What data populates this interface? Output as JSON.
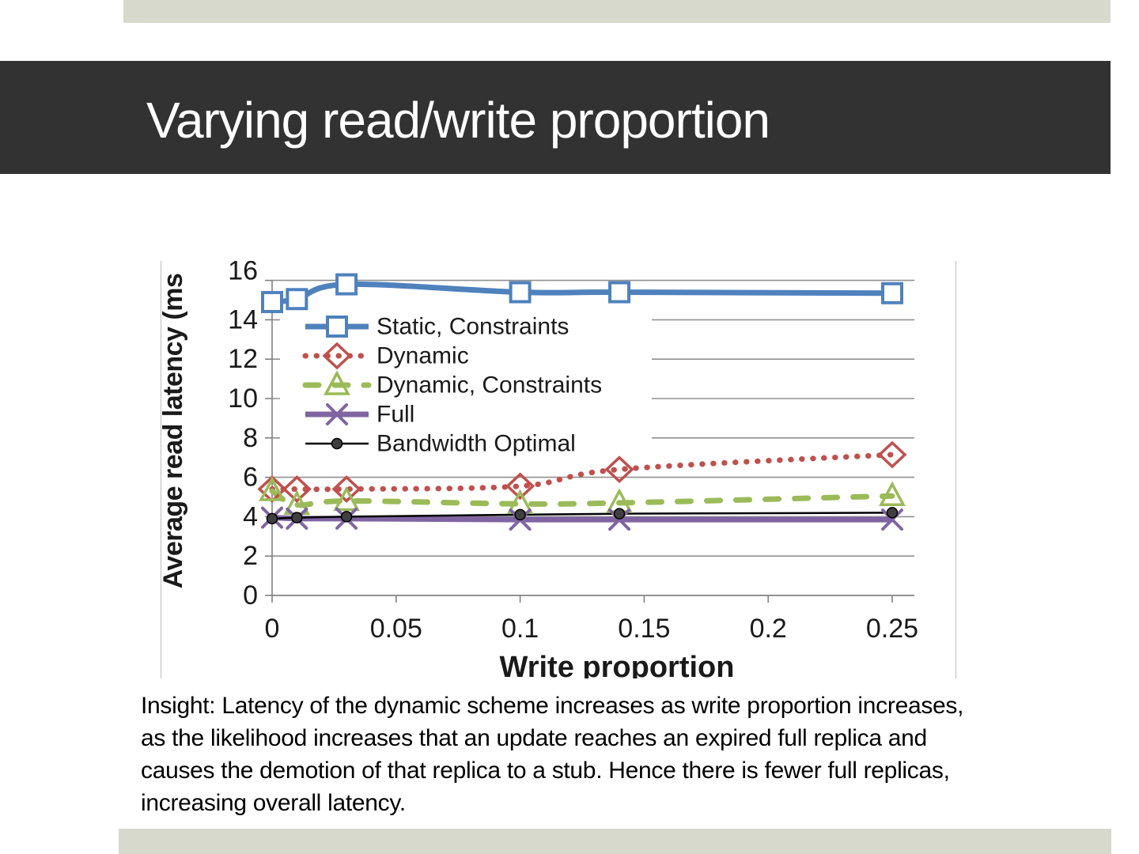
{
  "slide": {
    "title": "Varying read/write proportion",
    "insight": "Insight: Latency of the dynamic scheme increases as write proportion increases,\nas the likelihood increases that an update reaches an expired full replica and\ncauses the demotion of that replica to a stub. Hence there is fewer full replicas,\nincreasing overall latency.",
    "colors": {
      "accent_band": "#d7d9cc",
      "title_bar": "#323232",
      "title_text": "#ffffff"
    }
  },
  "chart_data": {
    "type": "line",
    "title": "",
    "xlabel": "Write proportion",
    "ylabel": "Average read latency (ms",
    "x": [
      0,
      0.01,
      0.03,
      0.1,
      0.14,
      0.25
    ],
    "series": [
      {
        "name": "Static, Constraints",
        "color": "#4f81bd",
        "marker": "square",
        "line": "solid",
        "width": 7,
        "smooth": true,
        "values": [
          14.9,
          15.05,
          15.8,
          15.4,
          15.4,
          15.35
        ]
      },
      {
        "name": "Dynamic",
        "color": "#c0504d",
        "marker": "diamond",
        "line": "dotted",
        "width": 7,
        "smooth": true,
        "values": [
          5.4,
          5.4,
          5.4,
          5.55,
          6.4,
          7.15
        ]
      },
      {
        "name": "Dynamic, Constraints",
        "color": "#9bbb59",
        "marker": "triangle",
        "line": "dashed",
        "width": 7,
        "smooth": true,
        "values": [
          5.3,
          4.6,
          4.8,
          4.65,
          4.7,
          5.05
        ]
      },
      {
        "name": "Full",
        "color": "#8064a2",
        "marker": "x",
        "line": "solid",
        "width": 7,
        "smooth": false,
        "values": [
          3.95,
          3.9,
          3.9,
          3.85,
          3.85,
          3.85
        ]
      },
      {
        "name": "Bandwidth Optimal",
        "color": "#000000",
        "marker": "dot",
        "line": "solid",
        "width": 2.5,
        "smooth": false,
        "values": [
          3.9,
          3.95,
          4.0,
          4.1,
          4.15,
          4.2
        ]
      }
    ],
    "xticks": [
      "0",
      "0.05",
      "0.1",
      "0.15",
      "0.2",
      "0.25"
    ],
    "yticks": [
      "0",
      "2",
      "4",
      "6",
      "8",
      "10",
      "12",
      "14",
      "16"
    ],
    "xlim": [
      0,
      0.26
    ],
    "ylim": [
      0,
      17
    ],
    "grid": "horizontal",
    "gridline_color": "#909090",
    "axis_color": "#808080",
    "text_color": "#1a1a1a",
    "legend_position": "upper-left-inside"
  }
}
